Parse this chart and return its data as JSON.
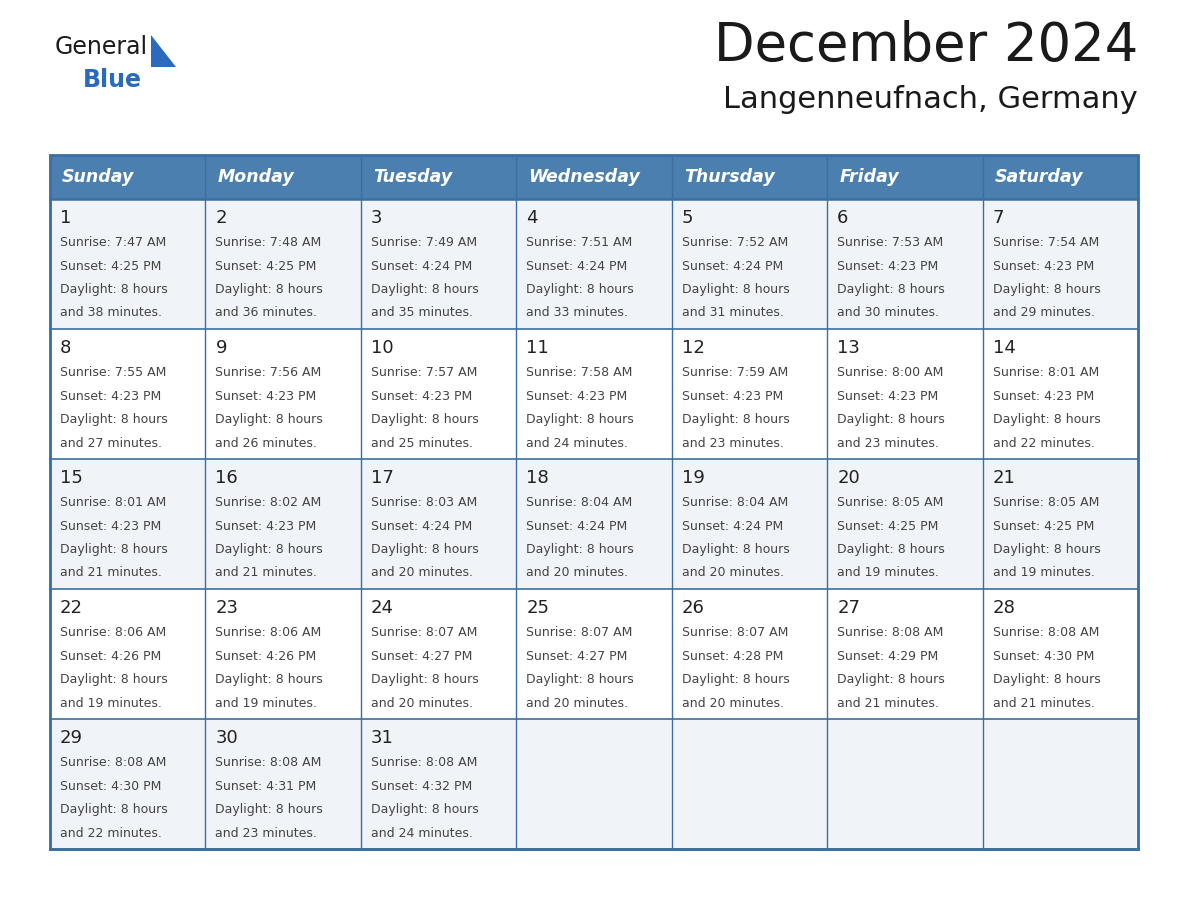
{
  "title": "December 2024",
  "subtitle": "Langenneufnach, Germany",
  "days_of_week": [
    "Sunday",
    "Monday",
    "Tuesday",
    "Wednesday",
    "Thursday",
    "Friday",
    "Saturday"
  ],
  "header_bg": "#4a7faf",
  "header_text": "#ffffff",
  "border_color": "#3a6f9f",
  "text_color": "#444444",
  "day_num_color": "#222222",
  "title_color": "#1a1a1a",
  "logo_general_color": "#1a1a1a",
  "logo_blue_color": "#2b6bbf",
  "logo_triangle_color": "#2b6bbf",
  "row_alt_bg": "#f0f4f8",
  "row_white_bg": "#ffffff",
  "calendar_data": [
    [
      {
        "day": 1,
        "sunrise": "7:47 AM",
        "sunset": "4:25 PM",
        "daylight_min": "and 38 minutes."
      },
      {
        "day": 2,
        "sunrise": "7:48 AM",
        "sunset": "4:25 PM",
        "daylight_min": "and 36 minutes."
      },
      {
        "day": 3,
        "sunrise": "7:49 AM",
        "sunset": "4:24 PM",
        "daylight_min": "and 35 minutes."
      },
      {
        "day": 4,
        "sunrise": "7:51 AM",
        "sunset": "4:24 PM",
        "daylight_min": "and 33 minutes."
      },
      {
        "day": 5,
        "sunrise": "7:52 AM",
        "sunset": "4:24 PM",
        "daylight_min": "and 31 minutes."
      },
      {
        "day": 6,
        "sunrise": "7:53 AM",
        "sunset": "4:23 PM",
        "daylight_min": "and 30 minutes."
      },
      {
        "day": 7,
        "sunrise": "7:54 AM",
        "sunset": "4:23 PM",
        "daylight_min": "and 29 minutes."
      }
    ],
    [
      {
        "day": 8,
        "sunrise": "7:55 AM",
        "sunset": "4:23 PM",
        "daylight_min": "and 27 minutes."
      },
      {
        "day": 9,
        "sunrise": "7:56 AM",
        "sunset": "4:23 PM",
        "daylight_min": "and 26 minutes."
      },
      {
        "day": 10,
        "sunrise": "7:57 AM",
        "sunset": "4:23 PM",
        "daylight_min": "and 25 minutes."
      },
      {
        "day": 11,
        "sunrise": "7:58 AM",
        "sunset": "4:23 PM",
        "daylight_min": "and 24 minutes."
      },
      {
        "day": 12,
        "sunrise": "7:59 AM",
        "sunset": "4:23 PM",
        "daylight_min": "and 23 minutes."
      },
      {
        "day": 13,
        "sunrise": "8:00 AM",
        "sunset": "4:23 PM",
        "daylight_min": "and 23 minutes."
      },
      {
        "day": 14,
        "sunrise": "8:01 AM",
        "sunset": "4:23 PM",
        "daylight_min": "and 22 minutes."
      }
    ],
    [
      {
        "day": 15,
        "sunrise": "8:01 AM",
        "sunset": "4:23 PM",
        "daylight_min": "and 21 minutes."
      },
      {
        "day": 16,
        "sunrise": "8:02 AM",
        "sunset": "4:23 PM",
        "daylight_min": "and 21 minutes."
      },
      {
        "day": 17,
        "sunrise": "8:03 AM",
        "sunset": "4:24 PM",
        "daylight_min": "and 20 minutes."
      },
      {
        "day": 18,
        "sunrise": "8:04 AM",
        "sunset": "4:24 PM",
        "daylight_min": "and 20 minutes."
      },
      {
        "day": 19,
        "sunrise": "8:04 AM",
        "sunset": "4:24 PM",
        "daylight_min": "and 20 minutes."
      },
      {
        "day": 20,
        "sunrise": "8:05 AM",
        "sunset": "4:25 PM",
        "daylight_min": "and 19 minutes."
      },
      {
        "day": 21,
        "sunrise": "8:05 AM",
        "sunset": "4:25 PM",
        "daylight_min": "and 19 minutes."
      }
    ],
    [
      {
        "day": 22,
        "sunrise": "8:06 AM",
        "sunset": "4:26 PM",
        "daylight_min": "and 19 minutes."
      },
      {
        "day": 23,
        "sunrise": "8:06 AM",
        "sunset": "4:26 PM",
        "daylight_min": "and 19 minutes."
      },
      {
        "day": 24,
        "sunrise": "8:07 AM",
        "sunset": "4:27 PM",
        "daylight_min": "and 20 minutes."
      },
      {
        "day": 25,
        "sunrise": "8:07 AM",
        "sunset": "4:27 PM",
        "daylight_min": "and 20 minutes."
      },
      {
        "day": 26,
        "sunrise": "8:07 AM",
        "sunset": "4:28 PM",
        "daylight_min": "and 20 minutes."
      },
      {
        "day": 27,
        "sunrise": "8:08 AM",
        "sunset": "4:29 PM",
        "daylight_min": "and 21 minutes."
      },
      {
        "day": 28,
        "sunrise": "8:08 AM",
        "sunset": "4:30 PM",
        "daylight_min": "and 21 minutes."
      }
    ],
    [
      {
        "day": 29,
        "sunrise": "8:08 AM",
        "sunset": "4:30 PM",
        "daylight_min": "and 22 minutes."
      },
      {
        "day": 30,
        "sunrise": "8:08 AM",
        "sunset": "4:31 PM",
        "daylight_min": "and 23 minutes."
      },
      {
        "day": 31,
        "sunrise": "8:08 AM",
        "sunset": "4:32 PM",
        "daylight_min": "and 24 minutes."
      },
      null,
      null,
      null,
      null
    ]
  ]
}
